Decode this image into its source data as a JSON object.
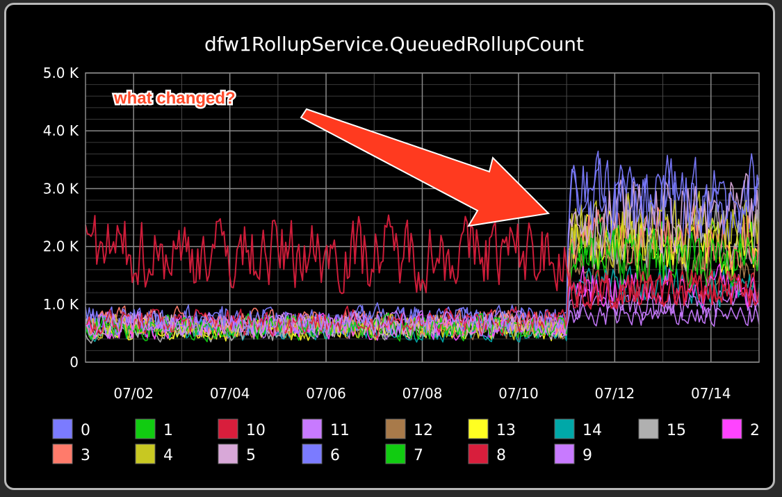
{
  "chart_data": {
    "type": "line",
    "title": "dfw1RollupService.QueuedRollupCount",
    "y_ticks": [
      "0",
      "1.0 K",
      "2.0 K",
      "3.0 K",
      "4.0 K",
      "5.0 K"
    ],
    "ylim": [
      0,
      5000
    ],
    "x_ticks": [
      "07/02",
      "07/04",
      "07/06",
      "07/08",
      "07/10",
      "07/12",
      "07/14"
    ],
    "x_start_day": 1,
    "x_end_day": 15,
    "grid": true,
    "background": "#000000",
    "annotation": "what changed?",
    "legend_position": "bottom",
    "series": [
      {
        "name": "0",
        "color": "#7b7bff",
        "before": 700,
        "after": 2700
      },
      {
        "name": "1",
        "color": "#11cc11",
        "before": 600,
        "after": 2000
      },
      {
        "name": "10",
        "color": "#d81e3c",
        "before": 1900,
        "after": 1200
      },
      {
        "name": "11",
        "color": "#c87aff",
        "before": 650,
        "after": 1000
      },
      {
        "name": "12",
        "color": "#a87a4a",
        "before": 600,
        "after": 1700
      },
      {
        "name": "13",
        "color": "#ffff22",
        "before": 550,
        "after": 2000
      },
      {
        "name": "14",
        "color": "#00a8a8",
        "before": 550,
        "after": 1300
      },
      {
        "name": "15",
        "color": "#b0b0b0",
        "before": 550,
        "after": 2200
      },
      {
        "name": "2",
        "color": "#ff44ff",
        "before": 600,
        "after": 1300
      },
      {
        "name": "3",
        "color": "#ff7b6b",
        "before": 700,
        "after": 2200
      },
      {
        "name": "4",
        "color": "#c8c822",
        "before": 600,
        "after": 2300
      },
      {
        "name": "5",
        "color": "#d8a8d8",
        "before": 650,
        "after": 2500
      },
      {
        "name": "6",
        "color": "#7b7bff",
        "before": 750,
        "after": 2800
      },
      {
        "name": "7",
        "color": "#11cc11",
        "before": 600,
        "after": 1800
      },
      {
        "name": "8",
        "color": "#d81e3c",
        "before": 700,
        "after": 1300
      },
      {
        "name": "9",
        "color": "#c87aff",
        "before": 650,
        "after": 800
      }
    ]
  }
}
